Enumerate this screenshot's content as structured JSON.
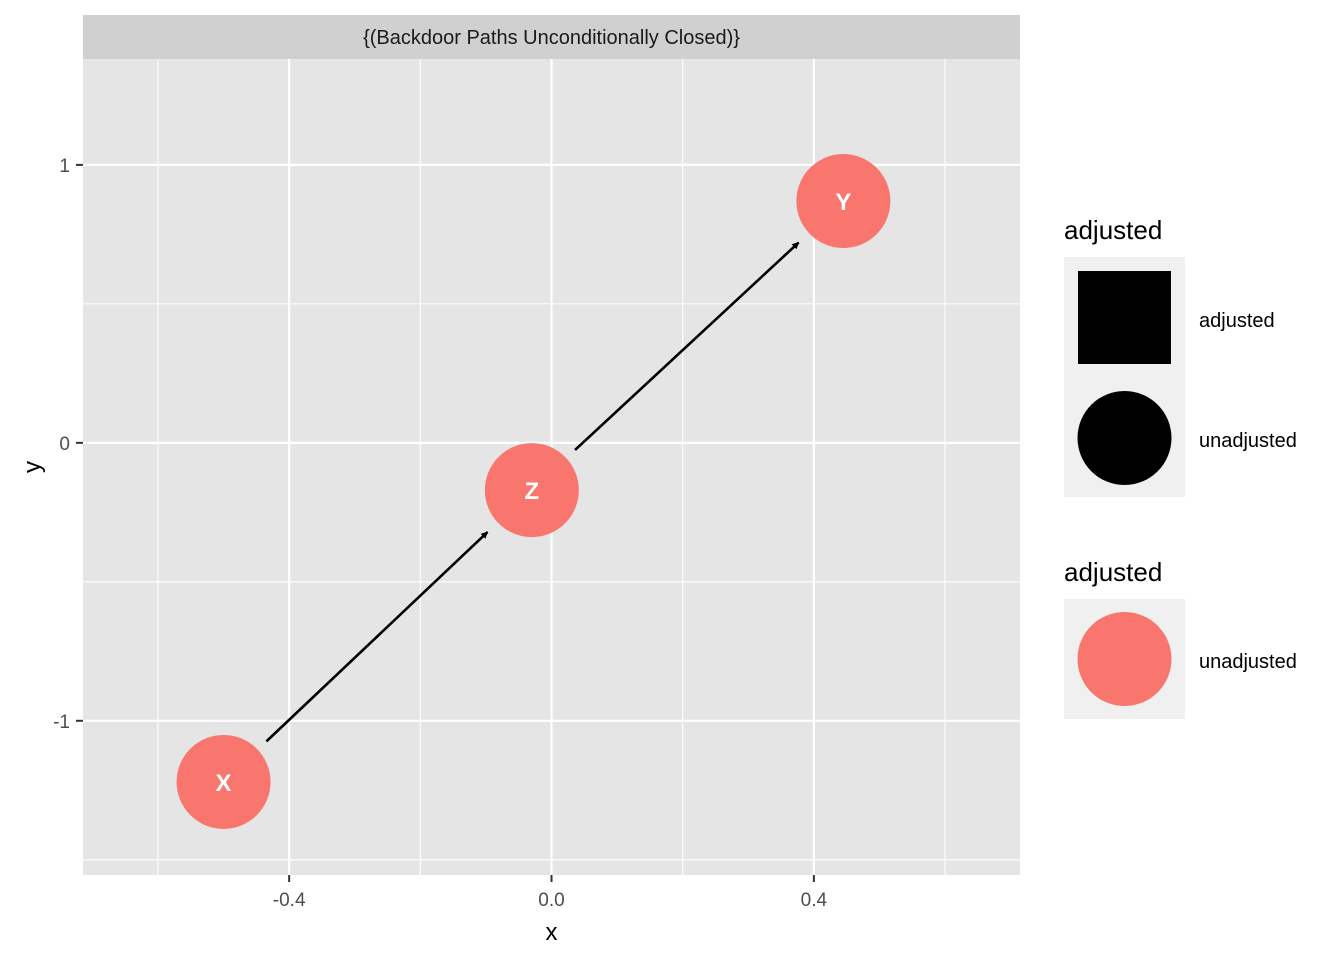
{
  "facet_title": "{(Backdoor Paths Unconditionally Closed)}",
  "axes": {
    "xlabel": "x",
    "ylabel": "y",
    "xlim": [
      -0.7143,
      0.7143
    ],
    "ylim": [
      -1.5548,
      1.381
    ],
    "x_major_ticks": [
      -0.4,
      0.0,
      0.4
    ],
    "x_major_tick_labels": [
      "-0.4",
      "0.0",
      "0.4"
    ],
    "x_minor_ticks": [
      -0.6,
      -0.2,
      0.2,
      0.6
    ],
    "y_major_ticks": [
      -1,
      0,
      1
    ],
    "y_major_tick_labels": [
      "-1",
      "0",
      "1"
    ],
    "y_minor_ticks": [
      -1.5,
      -0.5,
      0.5
    ],
    "grid": true
  },
  "colors": {
    "panel_bg": "#e5e5e5",
    "strip_bg": "#d0d0d0",
    "grid": "#ffffff",
    "node_fill": "#f8766d",
    "node_label": "#ffffff",
    "edge": "#000000",
    "axis_text": "#4d4d4d",
    "legend_key_bg": "#f0f0f0"
  },
  "chart_data": {
    "type": "dag",
    "nodes": [
      {
        "name": "X",
        "x": -0.5,
        "y": -1.22,
        "adjusted": "unadjusted"
      },
      {
        "name": "Z",
        "x": -0.03,
        "y": -0.17,
        "adjusted": "unadjusted"
      },
      {
        "name": "Y",
        "x": 0.445,
        "y": 0.87,
        "adjusted": "unadjusted"
      }
    ],
    "edges": [
      {
        "from": "X",
        "to": "Z"
      },
      {
        "from": "Z",
        "to": "Y"
      }
    ]
  },
  "legends": [
    {
      "title": "adjusted",
      "items": [
        {
          "label": "adjusted",
          "shape": "square",
          "color": "#000000"
        },
        {
          "label": "unadjusted",
          "shape": "circle",
          "color": "#000000"
        }
      ]
    },
    {
      "title": "adjusted",
      "items": [
        {
          "label": "unadjusted",
          "shape": "circle",
          "color": "#f8766d"
        }
      ]
    }
  ]
}
